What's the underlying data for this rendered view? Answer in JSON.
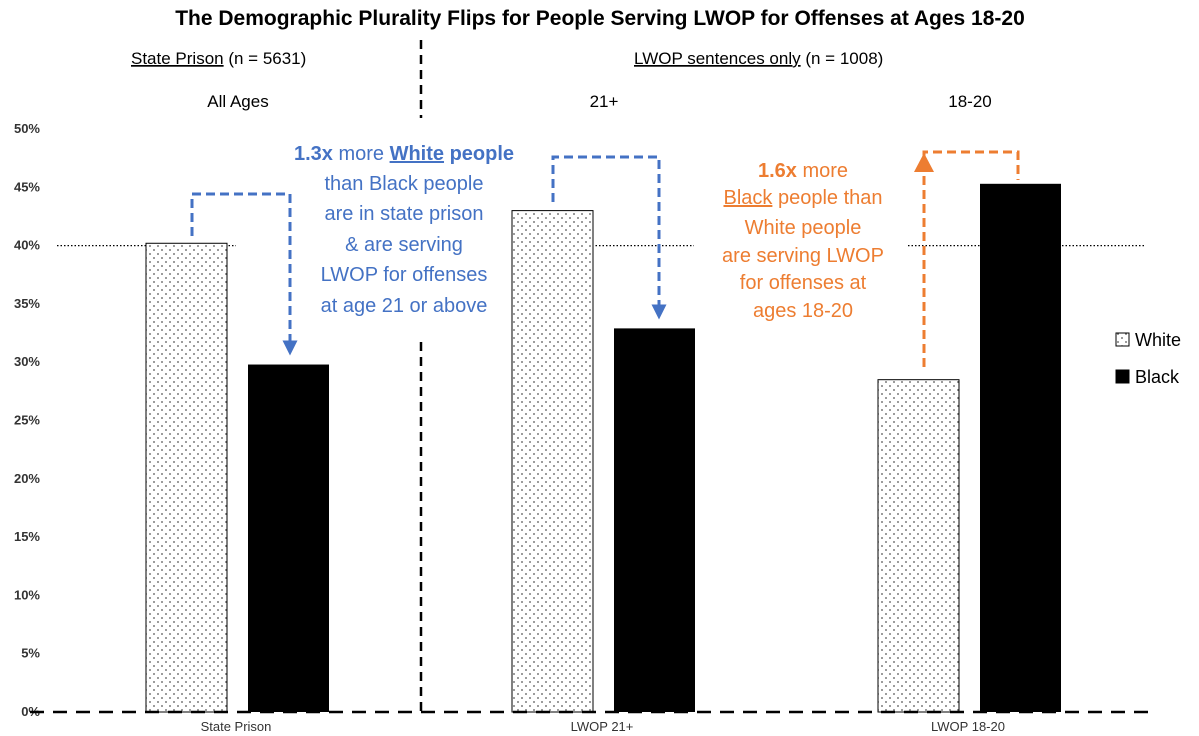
{
  "chart_data": {
    "type": "bar",
    "title": "The Demographic Plurality Flips for People Serving LWOP for Offenses at Ages 18-20",
    "categories": [
      "State Prison",
      "LWOP 21+",
      "LWOP 18-20"
    ],
    "series": [
      {
        "name": "White",
        "values": [
          40.2,
          43.0,
          28.5
        ],
        "pattern": "dotted"
      },
      {
        "name": "Black",
        "values": [
          29.8,
          32.9,
          45.3
        ],
        "color": "#000000"
      }
    ],
    "ylim": [
      0,
      50
    ],
    "yticks": [
      "0%",
      "5%",
      "10%",
      "15%",
      "20%",
      "25%",
      "30%",
      "35%",
      "40%",
      "45%",
      "50%"
    ],
    "reference_line": 40,
    "grid": false,
    "legend_position": "right",
    "sections": {
      "left": {
        "underlined": "State Prison",
        "rest": " (n = 5631)"
      },
      "right": {
        "underlined": "LWOP sentences only",
        "rest": " (n = 1008)"
      }
    },
    "group_labels": [
      "All Ages",
      "21+",
      "18-20"
    ],
    "annotations": {
      "blue": {
        "color": "#4472C4",
        "line1": {
          "bold": "1.3x",
          "mid": " more ",
          "underline_bold": "White",
          "end": " people"
        },
        "lines": [
          "than Black people",
          "are in state prison",
          "& are serving",
          "LWOP for offenses",
          "at age 21 or above"
        ]
      },
      "orange": {
        "color": "#ED7D31",
        "line1": {
          "bold": "1.6x",
          "end": " more"
        },
        "line2": {
          "underline_bold": "Black",
          "bold": " people",
          "end": " than"
        },
        "lines": [
          "White people",
          "are serving LWOP",
          "for offenses at",
          "ages 18-20"
        ]
      }
    }
  }
}
